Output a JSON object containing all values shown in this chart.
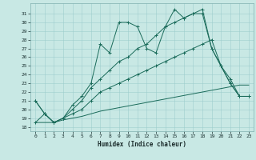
{
  "xlabel": "Humidex (Indice chaleur)",
  "xlim": [
    -0.5,
    23.5
  ],
  "ylim": [
    17.5,
    32.2
  ],
  "xticks": [
    0,
    1,
    2,
    3,
    4,
    5,
    6,
    7,
    8,
    9,
    10,
    11,
    12,
    13,
    14,
    15,
    16,
    17,
    18,
    19,
    20,
    21,
    22,
    23
  ],
  "yticks": [
    18,
    19,
    20,
    21,
    22,
    23,
    24,
    25,
    26,
    27,
    28,
    29,
    30,
    31
  ],
  "bg_color": "#c8e8e4",
  "line_color": "#1a6b5a",
  "grid_color": "#9ecece",
  "line_bottom_x": [
    0,
    1,
    2,
    3,
    4,
    5,
    6,
    7,
    8,
    9,
    10,
    11,
    12,
    13,
    14,
    15,
    16,
    17,
    18,
    19,
    20,
    21,
    22,
    23
  ],
  "line_bottom_y": [
    18.5,
    18.5,
    18.5,
    18.8,
    19.0,
    19.2,
    19.5,
    19.8,
    20.0,
    20.2,
    20.4,
    20.6,
    20.8,
    21.0,
    21.2,
    21.4,
    21.6,
    21.8,
    22.0,
    22.2,
    22.4,
    22.6,
    22.8,
    22.8
  ],
  "line_mid_x": [
    0,
    1,
    2,
    3,
    4,
    5,
    6,
    7,
    8,
    9,
    10,
    11,
    12,
    13,
    14,
    15,
    16,
    17,
    18,
    19,
    20,
    21,
    22,
    23
  ],
  "line_mid_y": [
    18.5,
    19.5,
    18.5,
    19.0,
    19.5,
    20.0,
    21.0,
    22.0,
    22.5,
    23.0,
    23.5,
    24.0,
    24.5,
    25.0,
    25.5,
    26.0,
    26.5,
    27.0,
    27.5,
    28.0,
    25.0,
    23.5,
    21.5,
    21.5
  ],
  "line_upper_x": [
    0,
    1,
    2,
    3,
    4,
    5,
    6,
    7,
    8,
    9,
    10,
    11,
    12,
    13,
    14,
    15,
    16,
    17,
    18,
    19,
    20,
    21,
    22,
    23
  ],
  "line_upper_y": [
    21.0,
    19.5,
    18.5,
    19.0,
    20.0,
    21.0,
    22.5,
    23.5,
    24.5,
    25.5,
    26.0,
    27.0,
    27.5,
    28.5,
    29.5,
    30.0,
    30.5,
    31.0,
    31.0,
    27.0,
    25.0,
    23.0,
    21.5,
    21.5
  ],
  "line_top_x": [
    0,
    1,
    2,
    3,
    4,
    5,
    6,
    7,
    8,
    9,
    10,
    11,
    12,
    13,
    14,
    15,
    16,
    17,
    18,
    19,
    20,
    21,
    22,
    23
  ],
  "line_top_y": [
    21.0,
    19.5,
    18.5,
    19.0,
    20.5,
    21.5,
    23.0,
    27.5,
    26.5,
    30.0,
    30.0,
    29.5,
    27.0,
    26.5,
    29.5,
    31.5,
    30.5,
    31.0,
    31.5,
    27.0,
    25.0,
    23.0,
    21.5,
    21.5
  ]
}
